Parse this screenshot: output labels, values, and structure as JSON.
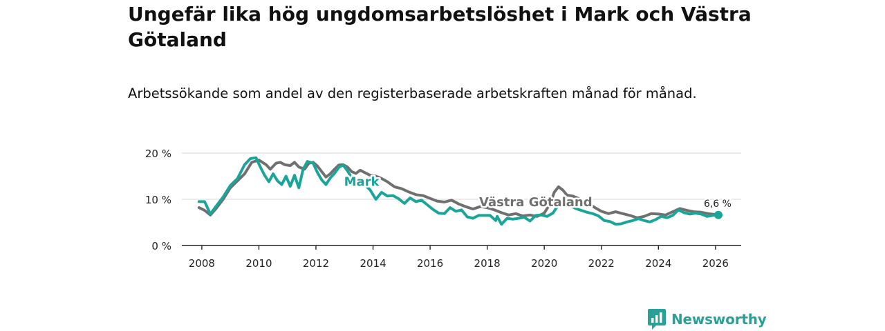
{
  "header": {
    "title": "Ungefär lika hög ungdomsarbetslöshet i Mark och Västra Götaland",
    "subtitle": "Arbetssökande som andel av den registerbaserade arbetskraften månad för månad."
  },
  "brand": {
    "name": "Newsworthy"
  },
  "colors": {
    "mark": "#1aa59a",
    "vg": "#707070",
    "grid": "#dddddd",
    "axis": "#222222",
    "brand": "#2aa198"
  },
  "chart_data": {
    "type": "line",
    "title": "Ungefär lika hög ungdomsarbetslöshet i Mark och Västra Götaland",
    "xlabel": "",
    "ylabel": "",
    "xlim": [
      2007.3,
      2026.9
    ],
    "ylim": [
      0,
      20
    ],
    "x_ticks": [
      2008,
      2010,
      2012,
      2014,
      2016,
      2018,
      2020,
      2022,
      2024,
      2026
    ],
    "x_tick_labels": [
      "2008",
      "2010",
      "2012",
      "2014",
      "2016",
      "2018",
      "2020",
      "2022",
      "2024",
      "2026"
    ],
    "y_ticks": [
      0,
      10,
      20
    ],
    "y_tick_labels": [
      "0 %",
      "10 %",
      "20 %"
    ],
    "grid": true,
    "series": [
      {
        "name": "Västra Götaland",
        "label": "Västra Götaland",
        "label_at": {
          "x": 2019.7,
          "y": 8.5
        },
        "color": "#707070",
        "x": [
          2007.9,
          2008.1,
          2008.3,
          2008.5,
          2008.75,
          2009.0,
          2009.25,
          2009.5,
          2009.75,
          2010.0,
          2010.25,
          2010.4,
          2010.6,
          2010.75,
          2010.9,
          2011.1,
          2011.25,
          2011.4,
          2011.6,
          2011.75,
          2011.9,
          2012.05,
          2012.2,
          2012.35,
          2012.5,
          2012.65,
          2012.8,
          2012.95,
          2013.1,
          2013.25,
          2013.4,
          2013.55,
          2013.7,
          2013.9,
          2014.1,
          2014.3,
          2014.5,
          2014.75,
          2015.0,
          2015.25,
          2015.5,
          2015.75,
          2016.0,
          2016.25,
          2016.5,
          2016.75,
          2017.0,
          2017.25,
          2017.5,
          2017.75,
          2018.0,
          2018.25,
          2018.5,
          2018.75,
          2019.0,
          2019.25,
          2019.5,
          2019.75,
          2020.0,
          2020.2,
          2020.35,
          2020.5,
          2020.65,
          2020.8,
          2021.0,
          2021.2,
          2021.4,
          2021.6,
          2021.8,
          2022.0,
          2022.25,
          2022.5,
          2022.75,
          2023.0,
          2023.25,
          2023.5,
          2023.75,
          2024.0,
          2024.25,
          2024.5,
          2024.75,
          2025.0,
          2025.25,
          2025.5,
          2025.75,
          2026.0,
          2026.15
        ],
        "y": [
          8.2,
          7.6,
          6.6,
          8.0,
          10.0,
          12.5,
          14.0,
          15.5,
          18.0,
          18.5,
          17.5,
          16.5,
          17.8,
          18.0,
          17.5,
          17.3,
          18.0,
          17.0,
          16.5,
          17.8,
          18.0,
          17.2,
          16.0,
          14.8,
          15.5,
          16.5,
          17.4,
          17.5,
          17.0,
          16.0,
          15.6,
          16.3,
          15.8,
          15.2,
          15.0,
          14.5,
          13.8,
          12.7,
          12.3,
          11.6,
          11.0,
          10.8,
          10.2,
          9.6,
          9.4,
          9.8,
          9.0,
          8.4,
          7.9,
          8.4,
          8.2,
          7.7,
          7.1,
          6.6,
          6.9,
          6.4,
          6.6,
          6.3,
          7.0,
          9.0,
          11.5,
          12.7,
          12.0,
          10.9,
          10.7,
          10.2,
          9.6,
          8.9,
          8.1,
          7.4,
          6.9,
          7.3,
          6.9,
          6.5,
          6.0,
          6.3,
          6.9,
          6.8,
          6.6,
          7.3,
          8.0,
          7.6,
          7.3,
          7.2,
          6.9,
          6.7,
          6.6
        ]
      },
      {
        "name": "Mark",
        "label": "Mark",
        "label_at": {
          "x": 2013.6,
          "y": 12.9
        },
        "color": "#1aa59a",
        "x": [
          2007.9,
          2008.1,
          2008.3,
          2008.5,
          2008.75,
          2009.0,
          2009.25,
          2009.5,
          2009.7,
          2009.9,
          2010.05,
          2010.2,
          2010.35,
          2010.5,
          2010.65,
          2010.8,
          2010.95,
          2011.1,
          2011.25,
          2011.4,
          2011.55,
          2011.7,
          2011.9,
          2012.05,
          2012.2,
          2012.35,
          2012.5,
          2012.65,
          2012.8,
          2012.95,
          2013.1,
          2013.3,
          2013.5,
          2013.7,
          2013.9,
          2014.1,
          2014.3,
          2014.5,
          2014.7,
          2014.9,
          2015.1,
          2015.3,
          2015.5,
          2015.7,
          2015.9,
          2016.1,
          2016.3,
          2016.5,
          2016.7,
          2016.9,
          2017.1,
          2017.3,
          2017.5,
          2017.7,
          2017.9,
          2018.1,
          2018.3,
          2018.35,
          2018.5,
          2018.7,
          2018.9,
          2019.1,
          2019.3,
          2019.5,
          2019.7,
          2019.9,
          2020.1,
          2020.3,
          2020.5,
          2020.7,
          2020.9,
          2021.1,
          2021.3,
          2021.5,
          2021.7,
          2021.9,
          2022.1,
          2022.3,
          2022.5,
          2022.7,
          2022.9,
          2023.1,
          2023.3,
          2023.5,
          2023.7,
          2023.9,
          2024.1,
          2024.3,
          2024.5,
          2024.7,
          2024.9,
          2025.1,
          2025.3,
          2025.5,
          2025.7,
          2025.9,
          2026.1
        ],
        "y": [
          9.5,
          9.5,
          6.8,
          8.5,
          10.5,
          13.0,
          14.5,
          17.5,
          18.8,
          19.0,
          17.0,
          15.2,
          13.8,
          15.5,
          14.0,
          13.2,
          15.0,
          12.8,
          15.2,
          12.5,
          16.5,
          18.2,
          17.8,
          15.8,
          14.2,
          13.2,
          14.6,
          15.6,
          16.9,
          17.4,
          16.2,
          14.2,
          13.7,
          13.2,
          12.0,
          10.0,
          11.5,
          10.7,
          10.8,
          10.1,
          9.1,
          10.3,
          9.5,
          9.8,
          8.8,
          7.8,
          7.0,
          6.9,
          8.2,
          7.4,
          7.7,
          6.2,
          5.9,
          6.5,
          6.5,
          6.5,
          5.4,
          6.3,
          4.6,
          5.9,
          5.7,
          5.9,
          6.1,
          5.3,
          6.5,
          6.6,
          6.3,
          7.0,
          8.8,
          9.2,
          8.7,
          8.0,
          7.6,
          7.2,
          6.9,
          6.4,
          5.4,
          5.2,
          4.6,
          4.7,
          5.1,
          5.4,
          5.8,
          5.4,
          5.1,
          5.6,
          6.3,
          6.0,
          6.5,
          7.7,
          7.1,
          6.8,
          7.0,
          6.8,
          6.3,
          6.5,
          6.6
        ]
      }
    ],
    "annotations": [
      {
        "text": "6,6 %",
        "series": "Mark",
        "x": 2026.1,
        "y": 6.6
      }
    ]
  }
}
